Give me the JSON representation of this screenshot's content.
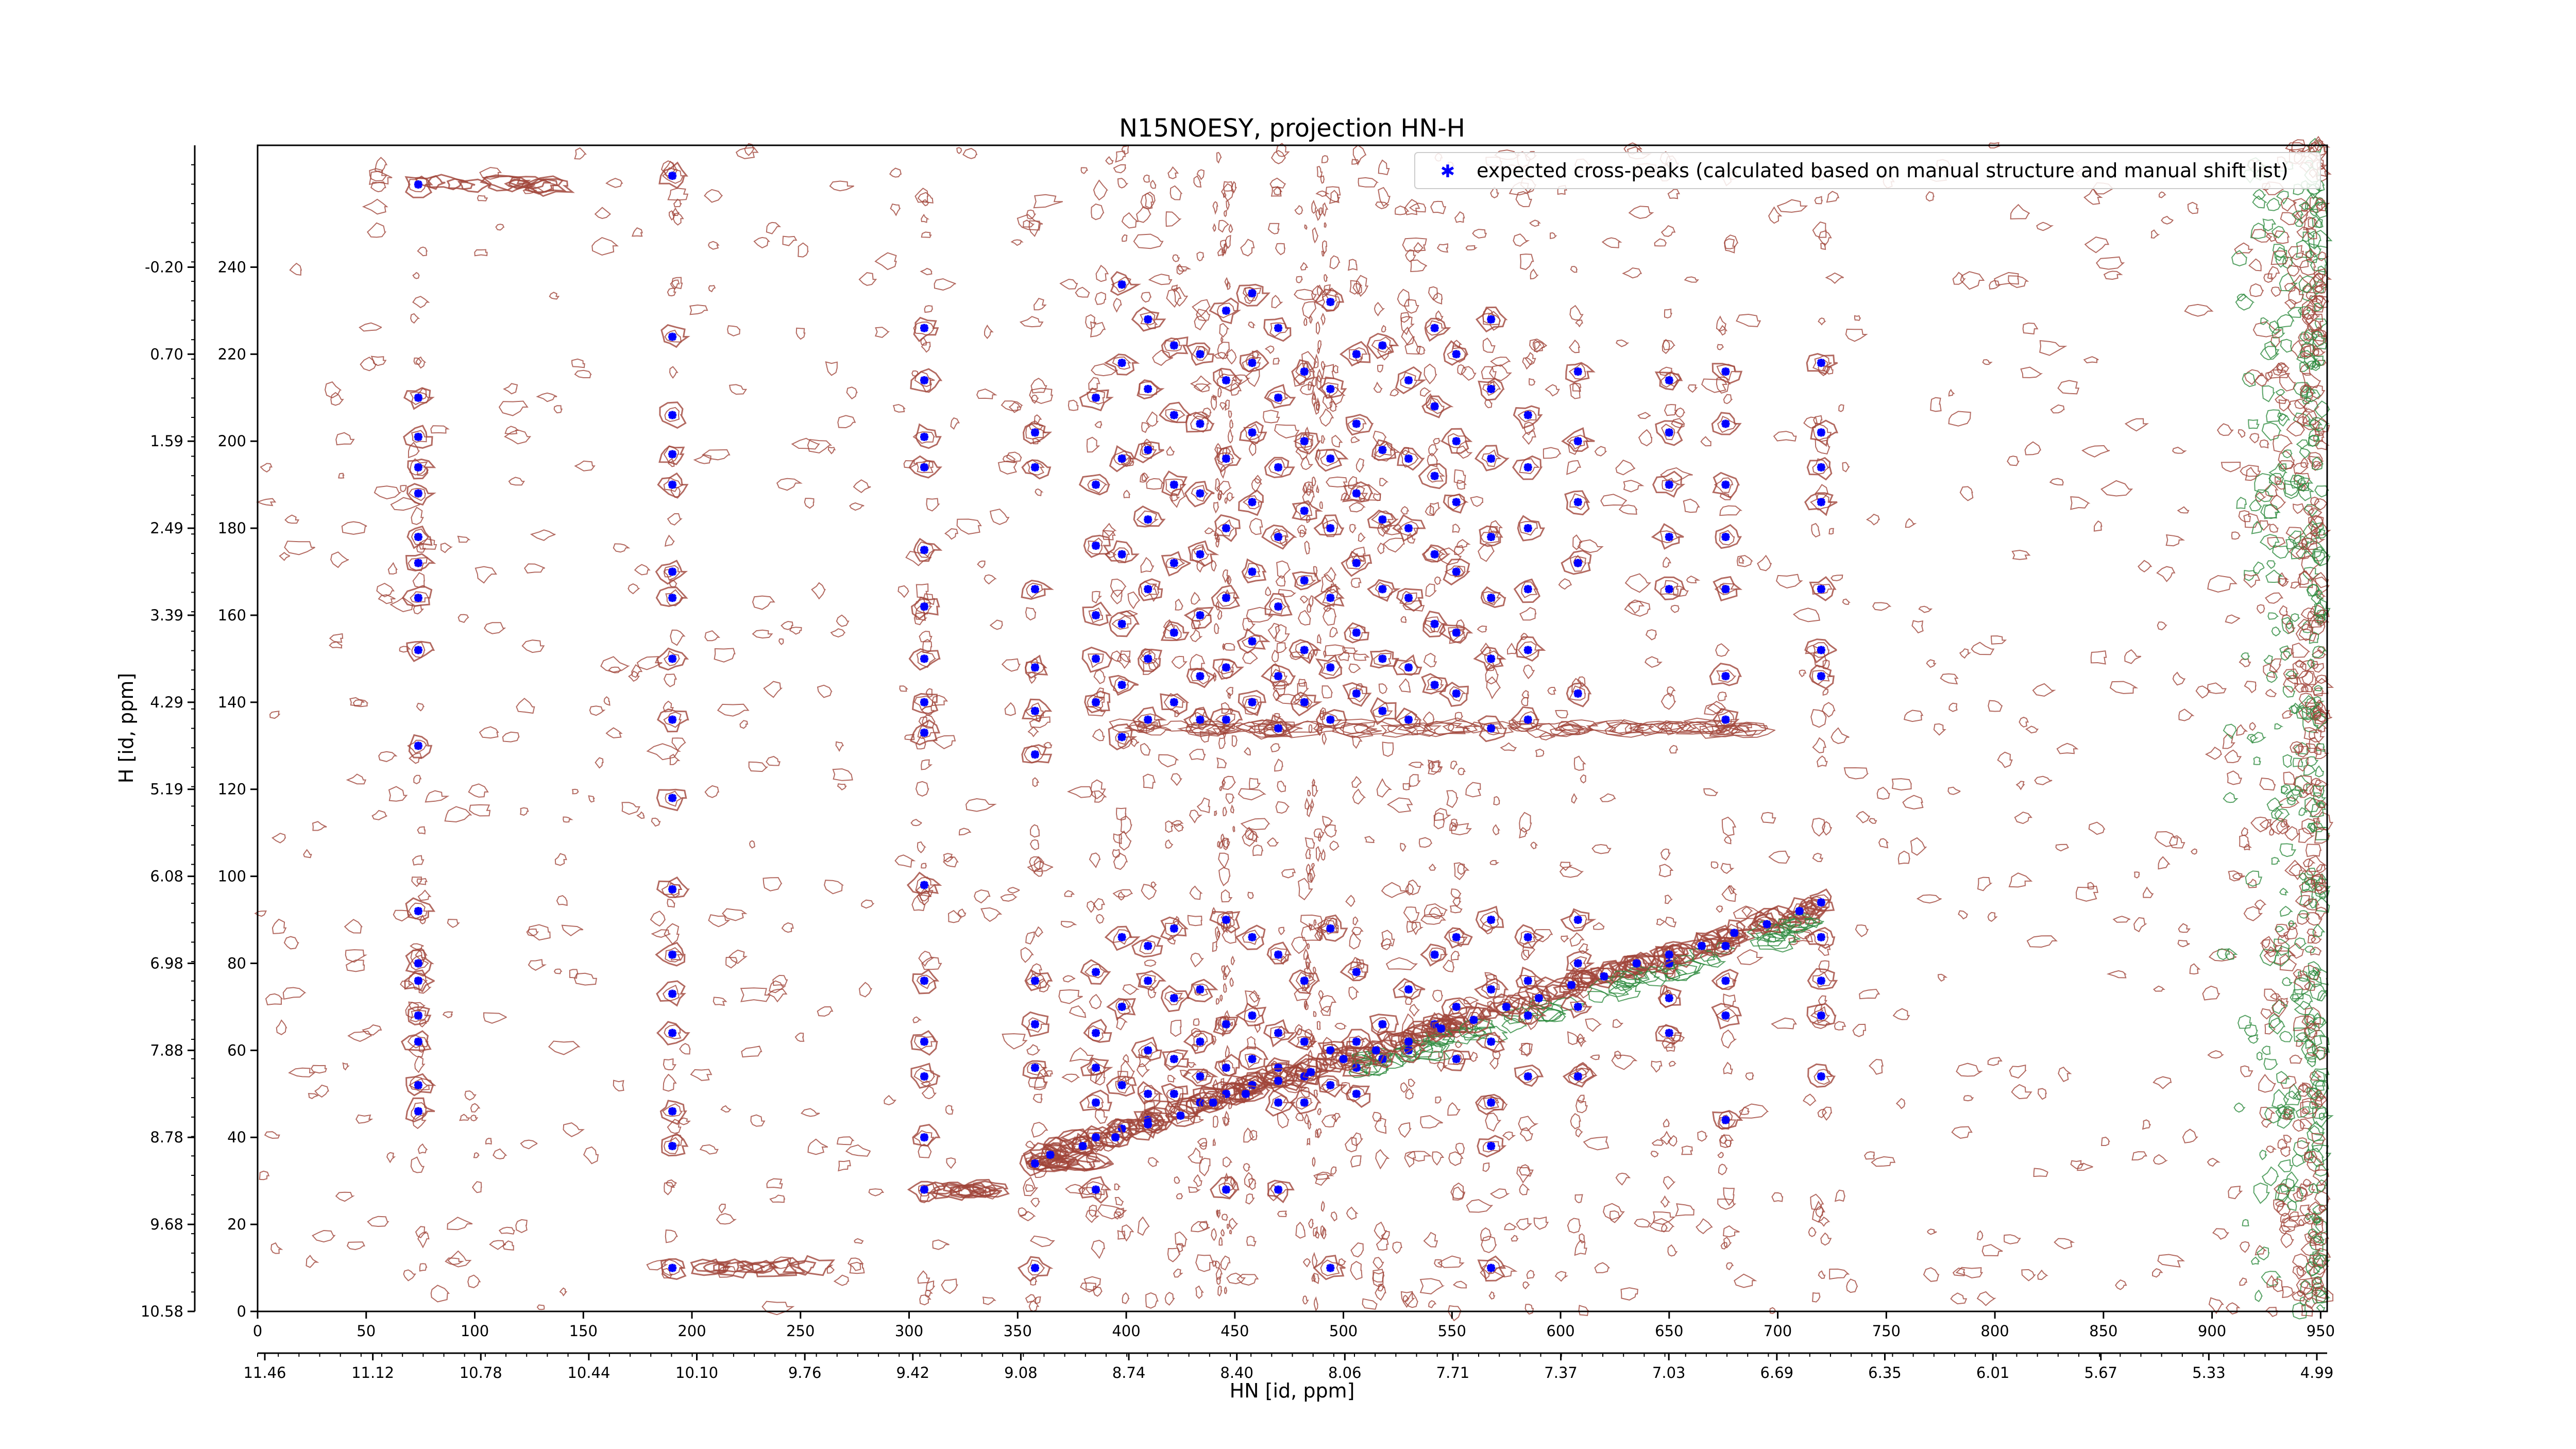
{
  "chart_data": {
    "type": "scatter",
    "title": "N15NOESY, projection HN-H",
    "xlabel": "HN [id, ppm]",
    "ylabel": "H [id, ppm]",
    "xlim": [
      0,
      953
    ],
    "ylim": [
      0,
      268
    ],
    "x_ticks_index": [
      "0",
      "50",
      "100",
      "150",
      "200",
      "250",
      "300",
      "350",
      "400",
      "450",
      "500",
      "550",
      "600",
      "650",
      "700",
      "750",
      "800",
      "850",
      "900",
      "950"
    ],
    "x_ticks_ppm": [
      "11.46",
      "11.12",
      "10.78",
      "10.44",
      "10.10",
      "9.76",
      "9.42",
      "9.08",
      "8.74",
      "8.40",
      "8.06",
      "7.71",
      "7.37",
      "7.03",
      "6.69",
      "6.35",
      "6.01",
      "5.67",
      "5.33",
      "4.99"
    ],
    "y_ticks_index": [
      "0",
      "20",
      "40",
      "60",
      "80",
      "100",
      "120",
      "140",
      "160",
      "180",
      "200",
      "220",
      "240"
    ],
    "y_ticks_ppm": [
      "10.58",
      "9.68",
      "8.78",
      "7.88",
      "6.98",
      "6.08",
      "5.19",
      "4.29",
      "3.39",
      "2.49",
      "1.59",
      "0.70",
      "-0.20"
    ],
    "legend": {
      "label": "expected cross-peaks (calculated based on manual structure and manual shift list)",
      "placement": "top-right"
    },
    "colors": {
      "peaks": "#0000ff",
      "positive_contour": "#a0453a",
      "negative_contour": "#2e8b3e"
    },
    "columns_x": [
      74,
      191,
      307,
      358,
      386,
      398,
      410,
      422,
      434,
      446,
      458,
      470,
      482,
      494,
      506,
      518,
      530,
      542,
      552,
      568,
      585,
      608,
      650,
      676,
      720
    ],
    "diagonal": {
      "start": [
        360,
        36
      ],
      "end": [
        720,
        93
      ]
    },
    "series": [
      {
        "name": "expected cross-peaks (calculated based on manual structure and manual shift list)",
        "points": [
          [
            74,
            259
          ],
          [
            74,
            210
          ],
          [
            74,
            201
          ],
          [
            74,
            194
          ],
          [
            74,
            188
          ],
          [
            74,
            178
          ],
          [
            74,
            172
          ],
          [
            74,
            164
          ],
          [
            74,
            152
          ],
          [
            74,
            130
          ],
          [
            74,
            92
          ],
          [
            74,
            80
          ],
          [
            74,
            76
          ],
          [
            74,
            68
          ],
          [
            74,
            62
          ],
          [
            74,
            52
          ],
          [
            74,
            46
          ],
          [
            191,
            261
          ],
          [
            191,
            224
          ],
          [
            191,
            206
          ],
          [
            191,
            197
          ],
          [
            191,
            190
          ],
          [
            191,
            170
          ],
          [
            191,
            164
          ],
          [
            191,
            150
          ],
          [
            191,
            136
          ],
          [
            191,
            118
          ],
          [
            191,
            97
          ],
          [
            191,
            82
          ],
          [
            191,
            73
          ],
          [
            191,
            64
          ],
          [
            191,
            46
          ],
          [
            191,
            38
          ],
          [
            191,
            10
          ],
          [
            307,
            226
          ],
          [
            307,
            214
          ],
          [
            307,
            201
          ],
          [
            307,
            194
          ],
          [
            307,
            175
          ],
          [
            307,
            162
          ],
          [
            307,
            150
          ],
          [
            307,
            140
          ],
          [
            307,
            133
          ],
          [
            307,
            98
          ],
          [
            307,
            76
          ],
          [
            307,
            62
          ],
          [
            307,
            54
          ],
          [
            307,
            40
          ],
          [
            307,
            28
          ],
          [
            358,
            202
          ],
          [
            358,
            194
          ],
          [
            358,
            166
          ],
          [
            358,
            148
          ],
          [
            358,
            138
          ],
          [
            358,
            128
          ],
          [
            358,
            76
          ],
          [
            358,
            66
          ],
          [
            358,
            56
          ],
          [
            358,
            34
          ],
          [
            358,
            10
          ],
          [
            386,
            210
          ],
          [
            386,
            190
          ],
          [
            386,
            176
          ],
          [
            386,
            160
          ],
          [
            386,
            150
          ],
          [
            386,
            140
          ],
          [
            386,
            78
          ],
          [
            386,
            64
          ],
          [
            386,
            56
          ],
          [
            386,
            48
          ],
          [
            386,
            40
          ],
          [
            386,
            28
          ],
          [
            398,
            236
          ],
          [
            398,
            218
          ],
          [
            398,
            196
          ],
          [
            398,
            174
          ],
          [
            398,
            158
          ],
          [
            398,
            144
          ],
          [
            398,
            132
          ],
          [
            398,
            86
          ],
          [
            398,
            70
          ],
          [
            398,
            52
          ],
          [
            398,
            42
          ],
          [
            410,
            228
          ],
          [
            410,
            212
          ],
          [
            410,
            198
          ],
          [
            410,
            182
          ],
          [
            410,
            166
          ],
          [
            410,
            150
          ],
          [
            410,
            136
          ],
          [
            410,
            84
          ],
          [
            410,
            76
          ],
          [
            410,
            60
          ],
          [
            410,
            50
          ],
          [
            410,
            44
          ],
          [
            422,
            222
          ],
          [
            422,
            206
          ],
          [
            422,
            190
          ],
          [
            422,
            172
          ],
          [
            422,
            156
          ],
          [
            422,
            140
          ],
          [
            422,
            88
          ],
          [
            422,
            72
          ],
          [
            422,
            58
          ],
          [
            422,
            50
          ],
          [
            434,
            220
          ],
          [
            434,
            204
          ],
          [
            434,
            188
          ],
          [
            434,
            174
          ],
          [
            434,
            160
          ],
          [
            434,
            146
          ],
          [
            434,
            136
          ],
          [
            434,
            74
          ],
          [
            434,
            62
          ],
          [
            434,
            54
          ],
          [
            434,
            48
          ],
          [
            446,
            230
          ],
          [
            446,
            214
          ],
          [
            446,
            196
          ],
          [
            446,
            180
          ],
          [
            446,
            164
          ],
          [
            446,
            148
          ],
          [
            446,
            136
          ],
          [
            446,
            90
          ],
          [
            446,
            66
          ],
          [
            446,
            56
          ],
          [
            446,
            50
          ],
          [
            446,
            28
          ],
          [
            458,
            234
          ],
          [
            458,
            218
          ],
          [
            458,
            202
          ],
          [
            458,
            186
          ],
          [
            458,
            170
          ],
          [
            458,
            154
          ],
          [
            458,
            140
          ],
          [
            458,
            86
          ],
          [
            458,
            68
          ],
          [
            458,
            58
          ],
          [
            458,
            52
          ],
          [
            470,
            226
          ],
          [
            470,
            210
          ],
          [
            470,
            194
          ],
          [
            470,
            178
          ],
          [
            470,
            162
          ],
          [
            470,
            146
          ],
          [
            470,
            134
          ],
          [
            470,
            82
          ],
          [
            470,
            64
          ],
          [
            470,
            56
          ],
          [
            470,
            48
          ],
          [
            470,
            28
          ],
          [
            482,
            216
          ],
          [
            482,
            200
          ],
          [
            482,
            184
          ],
          [
            482,
            168
          ],
          [
            482,
            152
          ],
          [
            482,
            140
          ],
          [
            482,
            76
          ],
          [
            482,
            62
          ],
          [
            482,
            54
          ],
          [
            482,
            48
          ],
          [
            494,
            232
          ],
          [
            494,
            212
          ],
          [
            494,
            196
          ],
          [
            494,
            180
          ],
          [
            494,
            164
          ],
          [
            494,
            148
          ],
          [
            494,
            136
          ],
          [
            494,
            88
          ],
          [
            494,
            60
          ],
          [
            494,
            52
          ],
          [
            494,
            10
          ],
          [
            506,
            220
          ],
          [
            506,
            204
          ],
          [
            506,
            188
          ],
          [
            506,
            172
          ],
          [
            506,
            156
          ],
          [
            506,
            142
          ],
          [
            506,
            78
          ],
          [
            506,
            62
          ],
          [
            506,
            56
          ],
          [
            506,
            50
          ],
          [
            518,
            222
          ],
          [
            518,
            198
          ],
          [
            518,
            182
          ],
          [
            518,
            166
          ],
          [
            518,
            150
          ],
          [
            518,
            138
          ],
          [
            518,
            66
          ],
          [
            518,
            58
          ],
          [
            530,
            214
          ],
          [
            530,
            196
          ],
          [
            530,
            180
          ],
          [
            530,
            164
          ],
          [
            530,
            148
          ],
          [
            530,
            136
          ],
          [
            530,
            74
          ],
          [
            530,
            60
          ],
          [
            542,
            226
          ],
          [
            542,
            208
          ],
          [
            542,
            192
          ],
          [
            542,
            174
          ],
          [
            542,
            158
          ],
          [
            542,
            144
          ],
          [
            542,
            82
          ],
          [
            542,
            66
          ],
          [
            552,
            220
          ],
          [
            552,
            200
          ],
          [
            552,
            186
          ],
          [
            552,
            170
          ],
          [
            552,
            156
          ],
          [
            552,
            142
          ],
          [
            552,
            86
          ],
          [
            552,
            70
          ],
          [
            552,
            58
          ],
          [
            568,
            228
          ],
          [
            568,
            212
          ],
          [
            568,
            196
          ],
          [
            568,
            178
          ],
          [
            568,
            164
          ],
          [
            568,
            150
          ],
          [
            568,
            134
          ],
          [
            568,
            90
          ],
          [
            568,
            74
          ],
          [
            568,
            62
          ],
          [
            568,
            48
          ],
          [
            568,
            38
          ],
          [
            568,
            10
          ],
          [
            585,
            206
          ],
          [
            585,
            194
          ],
          [
            585,
            180
          ],
          [
            585,
            166
          ],
          [
            585,
            152
          ],
          [
            585,
            136
          ],
          [
            585,
            86
          ],
          [
            585,
            76
          ],
          [
            585,
            68
          ],
          [
            585,
            54
          ],
          [
            608,
            216
          ],
          [
            608,
            200
          ],
          [
            608,
            186
          ],
          [
            608,
            172
          ],
          [
            608,
            142
          ],
          [
            608,
            90
          ],
          [
            608,
            80
          ],
          [
            608,
            70
          ],
          [
            608,
            54
          ],
          [
            650,
            214
          ],
          [
            650,
            202
          ],
          [
            650,
            190
          ],
          [
            650,
            178
          ],
          [
            650,
            166
          ],
          [
            650,
            80
          ],
          [
            650,
            72
          ],
          [
            650,
            64
          ],
          [
            676,
            216
          ],
          [
            676,
            204
          ],
          [
            676,
            190
          ],
          [
            676,
            178
          ],
          [
            676,
            166
          ],
          [
            676,
            146
          ],
          [
            676,
            136
          ],
          [
            676,
            84
          ],
          [
            676,
            76
          ],
          [
            676,
            68
          ],
          [
            676,
            44
          ],
          [
            720,
            218
          ],
          [
            720,
            202
          ],
          [
            720,
            194
          ],
          [
            720,
            186
          ],
          [
            720,
            166
          ],
          [
            720,
            152
          ],
          [
            720,
            146
          ],
          [
            720,
            94
          ],
          [
            720,
            86
          ],
          [
            720,
            76
          ],
          [
            720,
            68
          ],
          [
            720,
            54
          ],
          [
            365,
            36
          ],
          [
            380,
            38
          ],
          [
            395,
            40
          ],
          [
            410,
            43
          ],
          [
            425,
            45
          ],
          [
            440,
            48
          ],
          [
            455,
            50
          ],
          [
            470,
            53
          ],
          [
            485,
            55
          ],
          [
            500,
            58
          ],
          [
            515,
            60
          ],
          [
            530,
            62
          ],
          [
            545,
            65
          ],
          [
            560,
            67
          ],
          [
            575,
            70
          ],
          [
            590,
            72
          ],
          [
            605,
            75
          ],
          [
            620,
            77
          ],
          [
            635,
            80
          ],
          [
            650,
            82
          ],
          [
            665,
            84
          ],
          [
            680,
            87
          ],
          [
            695,
            89
          ],
          [
            710,
            92
          ]
        ]
      }
    ]
  }
}
